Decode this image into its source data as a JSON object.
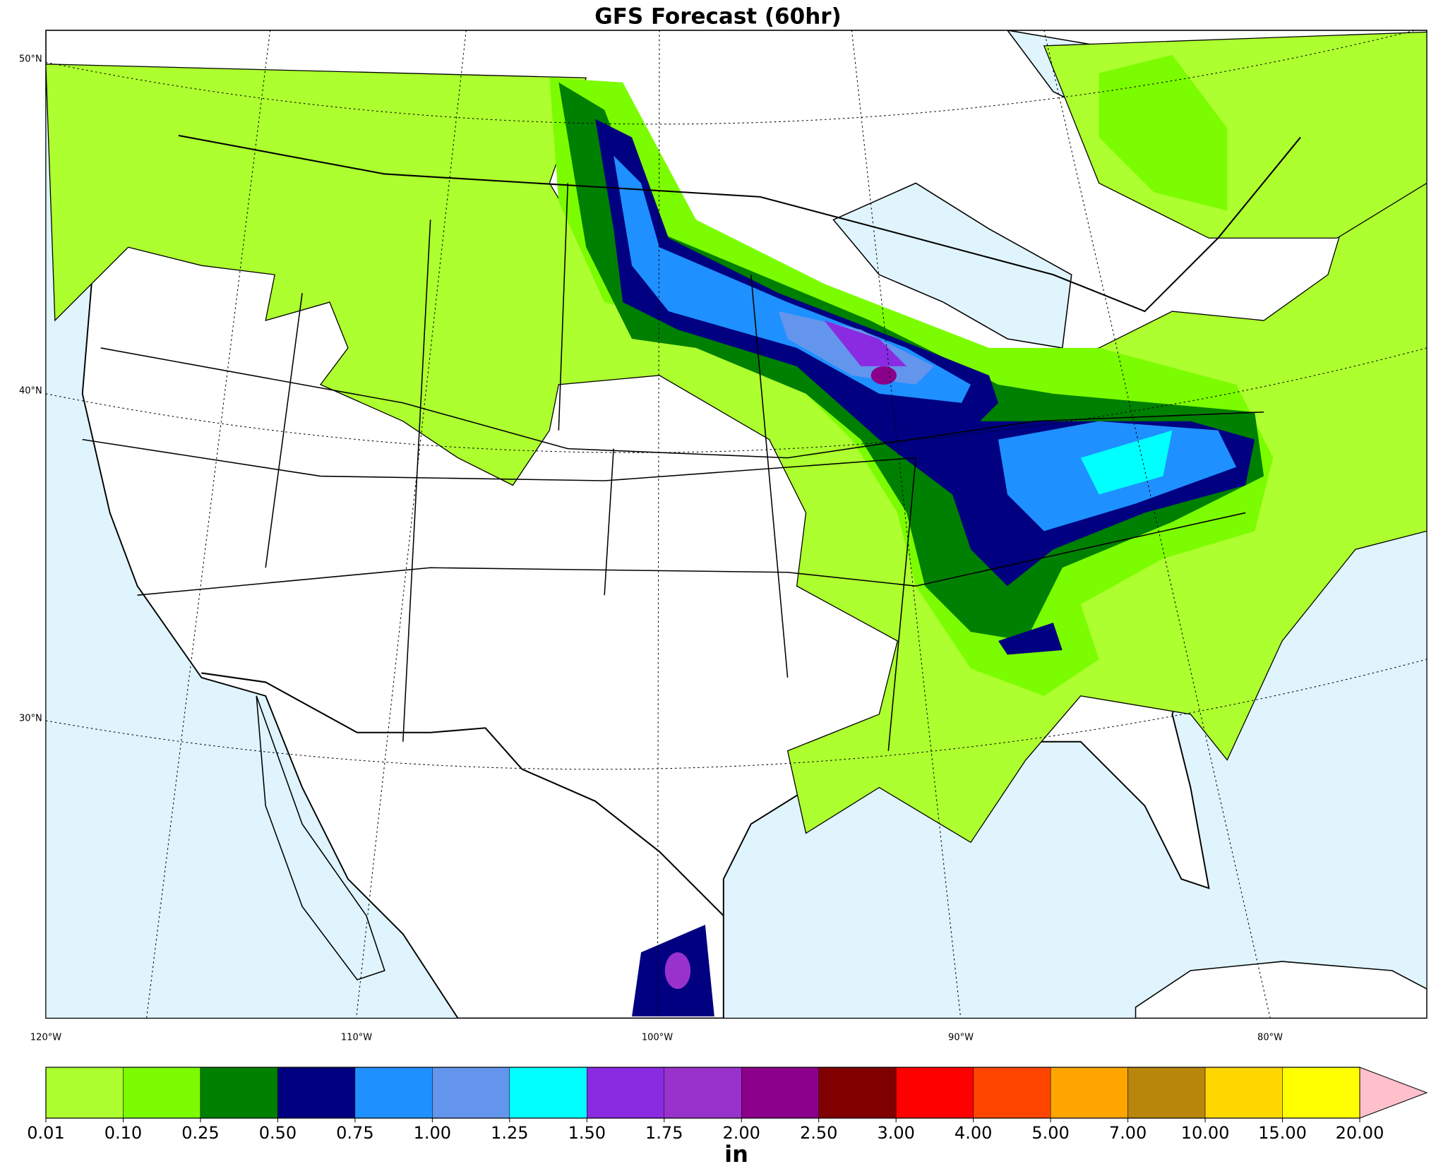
{
  "title": "GFS Forecast (60hr)",
  "map": {
    "lat_labels": [
      "50°N",
      "40°N",
      "30°N"
    ],
    "lon_labels": [
      "120°W",
      "110°W",
      "100°W",
      "90°W",
      "80°W"
    ]
  },
  "colorbar": {
    "label": "in",
    "levels": [
      {
        "value": 0.01,
        "label": "0.01"
      },
      {
        "value": 0.1,
        "label": "0.10"
      },
      {
        "value": 0.25,
        "label": "0.25"
      },
      {
        "value": 0.5,
        "label": "0.50"
      },
      {
        "value": 0.75,
        "label": "0.75"
      },
      {
        "value": 1,
        "label": "1.00"
      },
      {
        "value": 1.25,
        "label": "1.25"
      },
      {
        "value": 1.5,
        "label": "1.50"
      },
      {
        "value": 1.75,
        "label": "1.75"
      },
      {
        "value": 2,
        "label": "2.00"
      },
      {
        "value": 2.5,
        "label": "2.50"
      },
      {
        "value": 3,
        "label": "3.00"
      },
      {
        "value": 4,
        "label": "4.00"
      },
      {
        "value": 5,
        "label": "5.00"
      },
      {
        "value": 7,
        "label": "7.00"
      },
      {
        "value": 10,
        "label": "10.00"
      },
      {
        "value": 15,
        "label": "15.00"
      },
      {
        "value": 20,
        "label": "20.00"
      }
    ],
    "colors": [
      "#adff2f",
      "#7cfc00",
      "#008000",
      "#000080",
      "#1e90ff",
      "#6495ed",
      "#00ffff",
      "#8a2be2",
      "#9932cc",
      "#8b008b",
      "#800000",
      "#ff0000",
      "#ff4500",
      "#ffa500",
      "#b8860b",
      "#ffd700",
      "#ffff00"
    ],
    "extend_color": "#ffc0cb"
  }
}
